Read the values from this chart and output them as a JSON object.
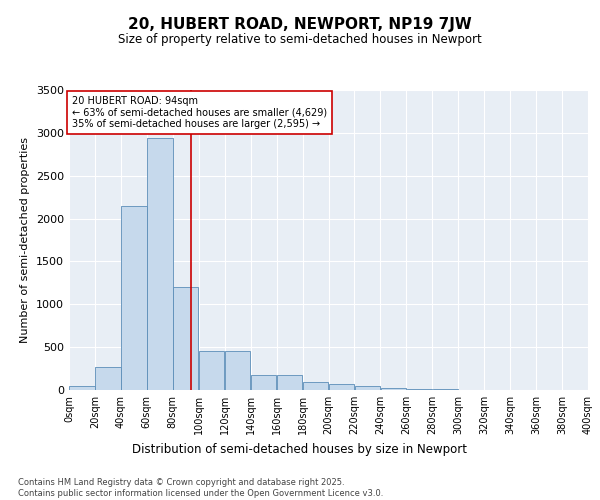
{
  "title": "20, HUBERT ROAD, NEWPORT, NP19 7JW",
  "subtitle": "Size of property relative to semi-detached houses in Newport",
  "xlabel": "Distribution of semi-detached houses by size in Newport",
  "ylabel": "Number of semi-detached properties",
  "bar_color": "#c6d9ec",
  "bar_edge_color": "#5b8db8",
  "background_color": "#e8eef5",
  "property_size": 94,
  "annotation_line1": "20 HUBERT ROAD: 94sqm",
  "annotation_line2": "← 63% of semi-detached houses are smaller (4,629)",
  "annotation_line3": "35% of semi-detached houses are larger (2,595) →",
  "bin_edges": [
    0,
    20,
    40,
    60,
    80,
    100,
    120,
    140,
    160,
    180,
    200,
    220,
    240,
    260,
    280,
    300,
    320,
    340,
    360,
    380,
    400
  ],
  "bin_counts": [
    48,
    265,
    2150,
    2940,
    1200,
    460,
    455,
    170,
    170,
    90,
    65,
    45,
    25,
    15,
    8,
    4,
    2,
    1,
    0,
    0
  ],
  "ylim": [
    0,
    3500
  ],
  "yticks": [
    0,
    500,
    1000,
    1500,
    2000,
    2500,
    3000,
    3500
  ],
  "footer_line1": "Contains HM Land Registry data © Crown copyright and database right 2025.",
  "footer_line2": "Contains public sector information licensed under the Open Government Licence v3.0.",
  "grid_color": "#ffffff",
  "annotation_box_color": "#ffffff",
  "annotation_box_edge": "#cc0000",
  "vline_color": "#cc0000"
}
